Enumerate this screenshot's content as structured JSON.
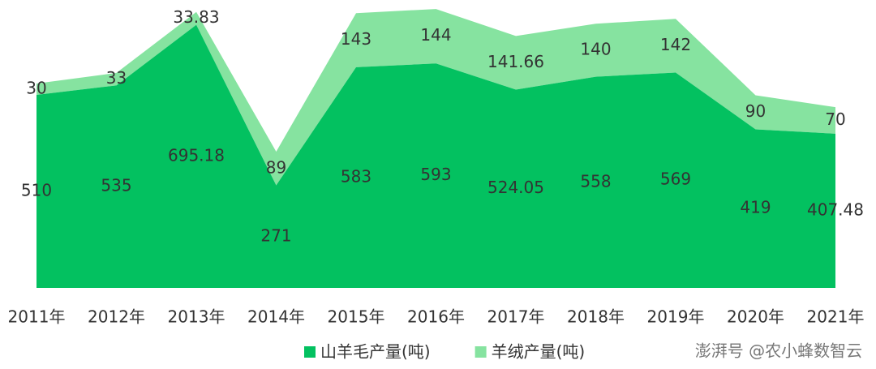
{
  "chart_data": {
    "type": "stacked-area",
    "categories": [
      "2011年",
      "2012年",
      "2013年",
      "2014年",
      "2015年",
      "2016年",
      "2017年",
      "2018年",
      "2019年",
      "2020年",
      "2021年"
    ],
    "series": [
      {
        "name": "山羊毛产量(吨)",
        "color": "#03c160",
        "values": [
          510,
          535,
          695.18,
          271,
          583,
          593,
          524.05,
          558,
          569,
          419,
          407.48
        ]
      },
      {
        "name": "羊绒产量(吨)",
        "color": "#86e3a0",
        "values": [
          30,
          33,
          33.83,
          89,
          143,
          144,
          141.66,
          140,
          142,
          90,
          70
        ]
      }
    ],
    "ylim": [
      0,
      750
    ],
    "legend": "bottom"
  },
  "watermark": "澎湃号 @农小蜂数智云"
}
